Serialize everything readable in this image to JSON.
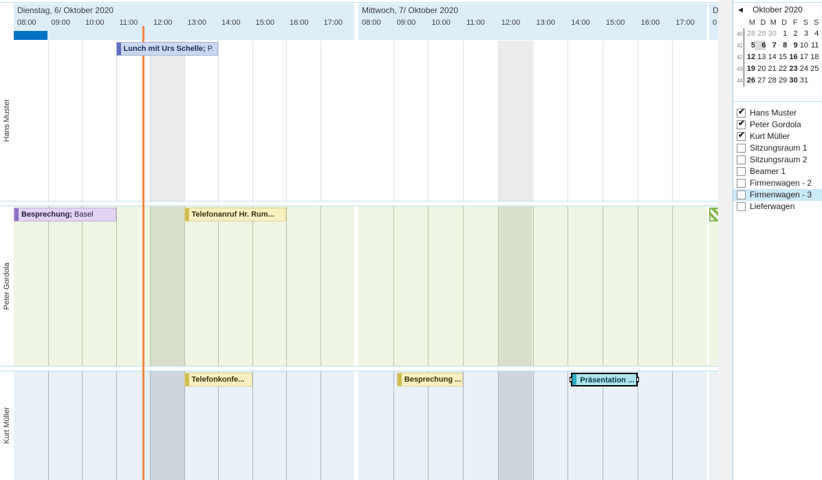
{
  "colors": {
    "header_band": "#dcedf7",
    "band_text": "#3b3b3b",
    "summary_bar": "#0072c6",
    "hairline": "#b9def0",
    "sep_line": "#9fcde6",
    "orange_line": "#f5843e",
    "gray_strip": "#f0f0f0",
    "row_themes": {
      "white": {
        "bg": "#ffffff",
        "shade": "#ebebeb",
        "grid": "#e0e0e0"
      },
      "green": {
        "bg": "#eef5e2",
        "shade": "#d9e0ca",
        "grid": "#b7c1a8"
      },
      "blue": {
        "bg": "#e9f1f7",
        "shade": "#cdd6dd",
        "grid": "#a8b4bd"
      }
    },
    "appt_themes": {
      "blue": {
        "bg": "#cbd7f0",
        "bar": "#5e6fc0",
        "border": "#a3b2da",
        "text": "#1b2c5c"
      },
      "purple": {
        "bg": "#e3d4f4",
        "bar": "#8e6fc8",
        "border": "#c0abe2",
        "text": "#241a3f"
      },
      "yellow": {
        "bg": "#f8f0c1",
        "bar": "#d2bc50",
        "border": "#decf90",
        "text": "#373010"
      },
      "teal": {
        "bg": "#ace3ed",
        "bar": "#2aaec6",
        "border": "#000000",
        "text": "#093a44"
      }
    },
    "hatch_green": "#86b74e",
    "list_highlight": "#cbe9f8",
    "selected_day_bg": "#dcdcdc",
    "muted_day": "#9f9f9f"
  },
  "timeline": {
    "days": [
      {
        "name": "Dienstag, 6/ Oktober 2020",
        "hours": [
          "08:00",
          "09:00",
          "10:00",
          "11:00",
          "12:00",
          "13:00",
          "14:00",
          "15:00",
          "16:00",
          "17:00"
        ],
        "shaded_hour_index": 4
      },
      {
        "name": "Mittwoch, 7/ Oktober 2020",
        "hours": [
          "08:00",
          "09:00",
          "10:00",
          "11:00",
          "12:00",
          "13:00",
          "14:00",
          "15:00",
          "16:00",
          "17:00"
        ],
        "shaded_hour_index": 4
      },
      {
        "name": "D",
        "hours": [
          "0"
        ],
        "shaded_hour_index": -1
      }
    ],
    "summary_bar": {
      "day": 0,
      "start": 8.0,
      "end": 9.0
    },
    "current_time": {
      "day": 0,
      "hour": 11.78
    }
  },
  "resources": [
    {
      "name": "Hans Muster",
      "theme": "white",
      "appointments": [
        {
          "text_bold": "Lunch mit Urs Schelle;",
          "text_rest": " P.",
          "theme": "blue",
          "day": 0,
          "start": 11.0,
          "end": 14.0,
          "selected": false,
          "hatched": false
        }
      ]
    },
    {
      "name": "Peter Gordola",
      "theme": "green",
      "appointments": [
        {
          "text_bold": "Besprechung;",
          "text_rest": " Basel",
          "theme": "purple",
          "day": 0,
          "start": 8.0,
          "end": 11.0,
          "selected": false,
          "hatched": false
        },
        {
          "text_bold": "Telefonanruf Hr. Rum...",
          "text_rest": "",
          "theme": "yellow",
          "day": 0,
          "start": 13.0,
          "end": 16.0,
          "selected": false,
          "hatched": false
        },
        {
          "text_bold": "",
          "text_rest": "",
          "theme": "hatch",
          "day": 2,
          "start": 8.0,
          "end": 8.45,
          "selected": false,
          "hatched": true
        }
      ]
    },
    {
      "name": "Kurt Müller",
      "theme": "blue",
      "appointments": [
        {
          "text_bold": "Telefonkonfe...",
          "text_rest": "",
          "theme": "yellow",
          "day": 0,
          "start": 13.0,
          "end": 15.0,
          "selected": false,
          "hatched": false
        },
        {
          "text_bold": "Besprechung ...",
          "text_rest": "",
          "theme": "yellow",
          "day": 1,
          "start": 9.1,
          "end": 11.0,
          "selected": false,
          "hatched": false
        },
        {
          "text_bold": "Präsentation ...",
          "text_rest": "",
          "theme": "teal",
          "day": 1,
          "start": 14.1,
          "end": 16.0,
          "selected": true,
          "hatched": false
        }
      ]
    }
  ],
  "minicalendar": {
    "title": "Oktober 2020",
    "prev_arrow": "◀",
    "day_headers": [
      "M",
      "D",
      "M",
      "D",
      "F",
      "S",
      "S"
    ],
    "weeks": [
      {
        "num": "40",
        "days": [
          {
            "d": "28",
            "muted": true
          },
          {
            "d": "29",
            "muted": true
          },
          {
            "d": "30",
            "muted": true
          },
          {
            "d": "1"
          },
          {
            "d": "2"
          },
          {
            "d": "3"
          },
          {
            "d": "4"
          }
        ]
      },
      {
        "num": "41",
        "days": [
          {
            "d": "5",
            "bold": true
          },
          {
            "d": "6",
            "bold": true,
            "selected": true
          },
          {
            "d": "7",
            "bold": true
          },
          {
            "d": "8",
            "bold": true
          },
          {
            "d": "9",
            "bold": true
          },
          {
            "d": "10"
          },
          {
            "d": "11"
          }
        ]
      },
      {
        "num": "42",
        "days": [
          {
            "d": "12",
            "bold": true
          },
          {
            "d": "13"
          },
          {
            "d": "14"
          },
          {
            "d": "15"
          },
          {
            "d": "16",
            "bold": true
          },
          {
            "d": "17"
          },
          {
            "d": "18"
          }
        ]
      },
      {
        "num": "43",
        "days": [
          {
            "d": "19",
            "bold": true
          },
          {
            "d": "20"
          },
          {
            "d": "21"
          },
          {
            "d": "22"
          },
          {
            "d": "23",
            "bold": true
          },
          {
            "d": "24"
          },
          {
            "d": "25"
          }
        ]
      },
      {
        "num": "44",
        "days": [
          {
            "d": "26",
            "bold": true
          },
          {
            "d": "27"
          },
          {
            "d": "28"
          },
          {
            "d": "29"
          },
          {
            "d": "30",
            "bold": true
          },
          {
            "d": "31"
          }
        ]
      }
    ]
  },
  "resource_list": {
    "items": [
      {
        "label": "Hans Muster",
        "checked": true,
        "highlighted": false
      },
      {
        "label": "Peter Gordola",
        "checked": true,
        "highlighted": false
      },
      {
        "label": "Kurt Müller",
        "checked": true,
        "highlighted": false
      },
      {
        "label": "Sitzungsraum 1",
        "checked": false,
        "highlighted": false
      },
      {
        "label": "Sitzungsraum 2",
        "checked": false,
        "highlighted": false
      },
      {
        "label": "Beamer 1",
        "checked": false,
        "highlighted": false
      },
      {
        "label": "Firmenwagen - 2",
        "checked": false,
        "highlighted": false
      },
      {
        "label": "Firmenwagen - 3",
        "checked": false,
        "highlighted": true
      },
      {
        "label": "Lieferwagen",
        "checked": false,
        "highlighted": false
      }
    ]
  }
}
